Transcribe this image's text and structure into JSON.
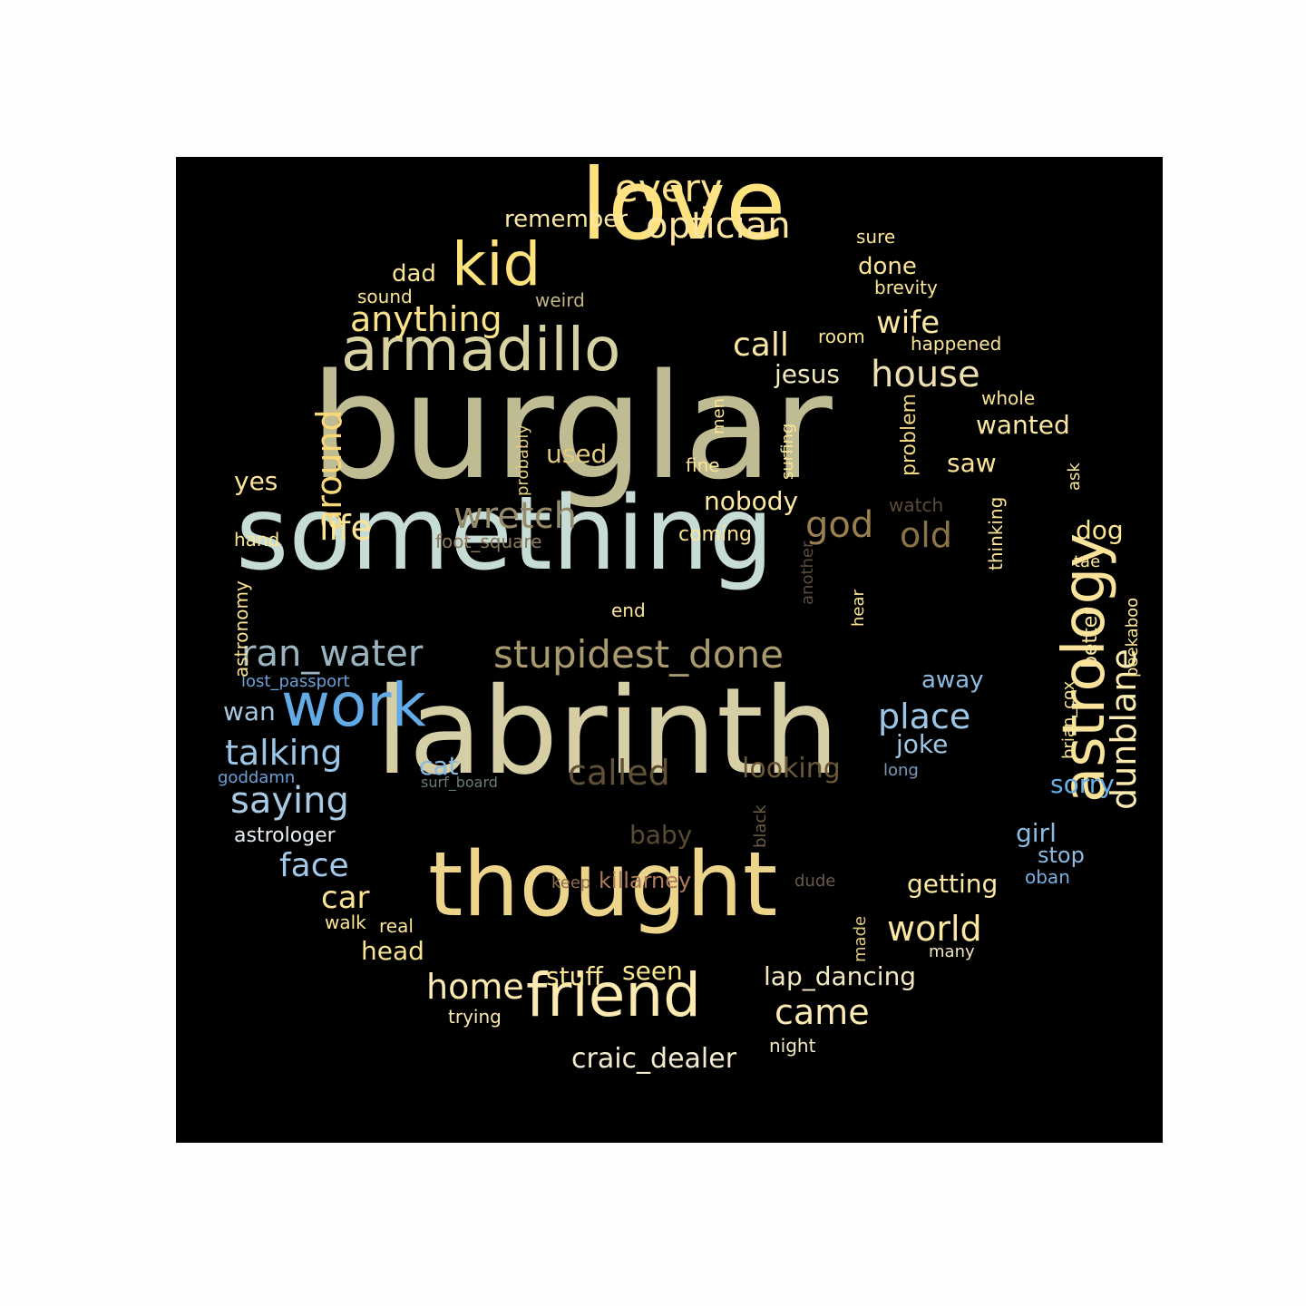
{
  "palette": {
    "background": "#000000",
    "page": "#fefefe"
  },
  "words": [
    {
      "text": "burglar",
      "color": "#bfbb92"
    },
    {
      "text": "something",
      "color": "#c8dcd6"
    },
    {
      "text": "labrinth",
      "color": "#d6cfa6"
    },
    {
      "text": "thought",
      "color": "#ecd58b"
    },
    {
      "text": "love",
      "color": "#fee27e"
    },
    {
      "text": "armadillo",
      "color": "#d8d2a2"
    },
    {
      "text": "kid",
      "color": "#fee27e"
    },
    {
      "text": "astrology",
      "color": "#f9e29a"
    },
    {
      "text": "friend",
      "color": "#fdeab0"
    },
    {
      "text": "work",
      "color": "#63abe6"
    },
    {
      "text": "stupidest_done",
      "color": "#a99b6e"
    },
    {
      "text": "ran_water",
      "color": "#9ab5c0"
    },
    {
      "text": "optician",
      "color": "#fee5a1"
    },
    {
      "text": "every",
      "color": "#fee38c"
    },
    {
      "text": "house",
      "color": "#eedfb0"
    },
    {
      "text": "anything",
      "color": "#fbe38c"
    },
    {
      "text": "wretch",
      "color": "#958a6a"
    },
    {
      "text": "dunblane",
      "color": "#fcebb0"
    },
    {
      "text": "around",
      "color": "#f9d877"
    },
    {
      "text": "life",
      "color": "#fbe594"
    },
    {
      "text": "saying",
      "color": "#a9cae2"
    },
    {
      "text": "talking",
      "color": "#9cc7e8"
    },
    {
      "text": "place",
      "color": "#9cc5e6"
    },
    {
      "text": "called",
      "color": "#5f5036"
    },
    {
      "text": "god",
      "color": "#9a8050"
    },
    {
      "text": "old",
      "color": "#8a7447"
    },
    {
      "text": "world",
      "color": "#fbe7a2"
    },
    {
      "text": "home",
      "color": "#fdeab0"
    },
    {
      "text": "came",
      "color": "#fdebb3"
    },
    {
      "text": "face",
      "color": "#a3c9ea"
    },
    {
      "text": "wife",
      "color": "#fbe7a2"
    },
    {
      "text": "call",
      "color": "#fbe7a2"
    },
    {
      "text": "looking",
      "color": "#6b5838"
    },
    {
      "text": "craic_dealer",
      "color": "#f4ebd0"
    },
    {
      "text": "lap_dancing",
      "color": "#f4e8c2"
    },
    {
      "text": "car",
      "color": "#fbe594"
    },
    {
      "text": "head",
      "color": "#fbe594"
    },
    {
      "text": "stuff",
      "color": "#fbe58f"
    },
    {
      "text": "seen",
      "color": "#fbe58f"
    },
    {
      "text": "jesus",
      "color": "#f4e8c2"
    },
    {
      "text": "nobody",
      "color": "#fbe7a2"
    },
    {
      "text": "getting",
      "color": "#fce8a3"
    },
    {
      "text": "wanted",
      "color": "#fbe7a2"
    },
    {
      "text": "remember",
      "color": "#fce8a3"
    },
    {
      "text": "dad",
      "color": "#fbe594"
    },
    {
      "text": "done",
      "color": "#fbe594"
    },
    {
      "text": "used",
      "color": "#e2c980"
    },
    {
      "text": "yes",
      "color": "#fbe594"
    },
    {
      "text": "saw",
      "color": "#fbe594"
    },
    {
      "text": "dog",
      "color": "#fbe594"
    },
    {
      "text": "joke",
      "color": "#9cc5e6"
    },
    {
      "text": "away",
      "color": "#8cbbe2"
    },
    {
      "text": "wan",
      "color": "#a8c9e0"
    },
    {
      "text": "cat",
      "color": "#8cbbe2"
    },
    {
      "text": "girl",
      "color": "#8cbbe2"
    },
    {
      "text": "stop",
      "color": "#8cbbe2"
    },
    {
      "text": "sorry",
      "color": "#6aaee6"
    },
    {
      "text": "killarney",
      "color": "#b07a5a"
    },
    {
      "text": "baby",
      "color": "#594a34"
    },
    {
      "text": "astrologer",
      "color": "#e8eef2"
    },
    {
      "text": "problem",
      "color": "#f4d880"
    },
    {
      "text": "better",
      "color": "#fbe7a2"
    },
    {
      "text": "brevity",
      "color": "#fbe594"
    },
    {
      "text": "sound",
      "color": "#fbe594"
    },
    {
      "text": "weird",
      "color": "#c4b685"
    },
    {
      "text": "happened",
      "color": "#fbe594"
    },
    {
      "text": "room",
      "color": "#fbe594"
    },
    {
      "text": "whole",
      "color": "#fbe594"
    },
    {
      "text": "sure",
      "color": "#fbe594"
    },
    {
      "text": "fine",
      "color": "#fbe594"
    },
    {
      "text": "coming",
      "color": "#fbe594"
    },
    {
      "text": "hand",
      "color": "#fbe594"
    },
    {
      "text": "end",
      "color": "#fbe594"
    },
    {
      "text": "foot_square",
      "color": "#8a7a5a"
    },
    {
      "text": "watch",
      "color": "#5a4c34"
    },
    {
      "text": "long",
      "color": "#7a9aba"
    },
    {
      "text": "goddamn",
      "color": "#6aa0d4"
    },
    {
      "text": "lost_passport",
      "color": "#6aa0d4"
    },
    {
      "text": "surf_board",
      "color": "#6a7a7a"
    },
    {
      "text": "oban",
      "color": "#7ab0e0"
    },
    {
      "text": "many",
      "color": "#f4e8c2"
    },
    {
      "text": "real",
      "color": "#fbe594"
    },
    {
      "text": "walk",
      "color": "#fbe594"
    },
    {
      "text": "trying",
      "color": "#fce8b0"
    },
    {
      "text": "night",
      "color": "#f4e8c2"
    },
    {
      "text": "keep",
      "color": "#906a4a"
    },
    {
      "text": "dude",
      "color": "#6a5a4a"
    },
    {
      "text": "tae",
      "color": "#fbe594"
    },
    {
      "text": "ask",
      "color": "#fbe594"
    },
    {
      "text": "thinking",
      "color": "#fbe594"
    },
    {
      "text": "probably",
      "color": "#e2c980"
    },
    {
      "text": "men",
      "color": "#fbe594"
    },
    {
      "text": "surfing",
      "color": "#fbe594"
    },
    {
      "text": "another",
      "color": "#5a4c3a"
    },
    {
      "text": "hear",
      "color": "#fbe594"
    },
    {
      "text": "black",
      "color": "#6a5a46"
    },
    {
      "text": "made",
      "color": "#e2c980"
    },
    {
      "text": "brian_cox",
      "color": "#fbe594"
    },
    {
      "text": "peekaboo",
      "color": "#fbe594"
    },
    {
      "text": "astronomy",
      "color": "#fbe594"
    }
  ]
}
